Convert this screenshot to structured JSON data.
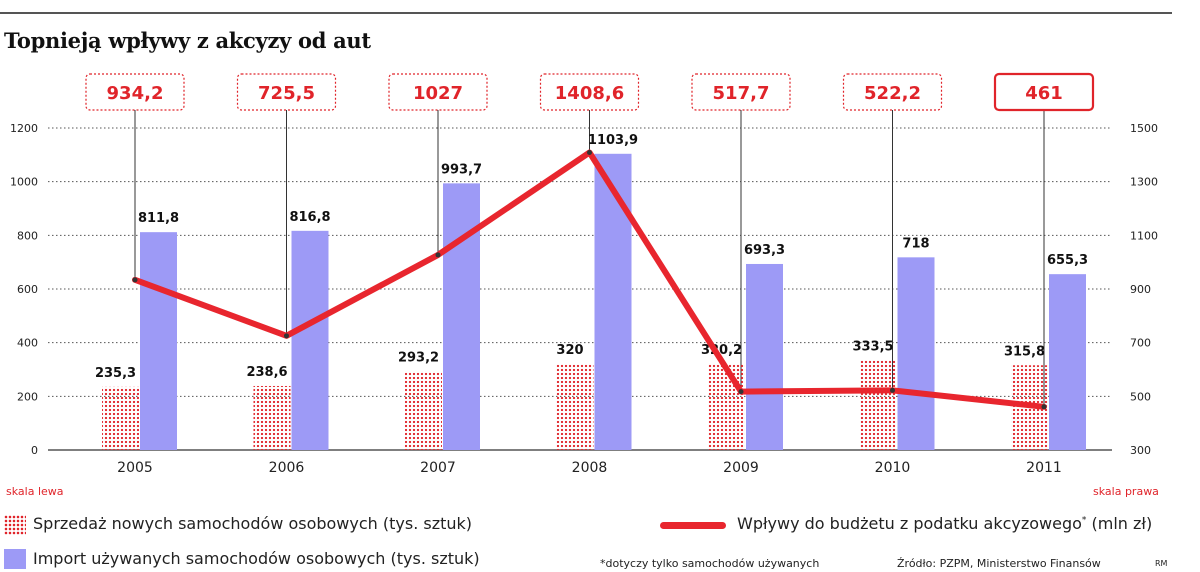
{
  "title": "Topnieją wpływy z akcyzy od aut",
  "chart_data": {
    "type": "bar",
    "categories": [
      "2005",
      "2006",
      "2007",
      "2008",
      "2009",
      "2010",
      "2011"
    ],
    "series": [
      {
        "name": "Sprzedaż nowych samochodów osobowych (tys. sztuk)",
        "type": "bar",
        "axis": "left",
        "values": [
          235.3,
          238.6,
          293.2,
          320,
          320.2,
          333.5,
          315.8
        ],
        "labels": [
          "235,3",
          "238,6",
          "293,2",
          "320",
          "320,2",
          "333,5",
          "315,8"
        ],
        "color": "#e0242a",
        "pattern": "dots"
      },
      {
        "name": "Import używanych samochodów osobowych (tys. sztuk)",
        "type": "bar",
        "axis": "left",
        "values": [
          811.8,
          816.8,
          993.7,
          1103.9,
          693.3,
          718,
          655.3
        ],
        "labels": [
          "811,8",
          "816,8",
          "993,7",
          "1103,9",
          "693,3",
          "718",
          "655,3"
        ],
        "color": "#9d9af6"
      },
      {
        "name": "Wpływy do budżetu z podatku akcyzowego* (mln zł)",
        "type": "line",
        "axis": "right",
        "values": [
          934.2,
          725.5,
          1027,
          1408.6,
          517.7,
          522.2,
          461
        ],
        "labels": [
          "934,2",
          "725,5",
          "1027",
          "1408,6",
          "517,7",
          "522,2",
          "461"
        ],
        "color": "#e8262e"
      }
    ],
    "y_left": {
      "ylim": [
        0,
        1200
      ],
      "ticks": [
        "0",
        "200",
        "400",
        "600",
        "800",
        "1000",
        "1200"
      ]
    },
    "y_right": {
      "ylim": [
        300,
        1500
      ],
      "ticks": [
        "300",
        "500",
        "700",
        "900",
        "1100",
        "1300",
        "1500"
      ]
    },
    "grid": true,
    "legend_position": "bottom"
  },
  "scale_labels": {
    "left": "skala lewa",
    "right": "skala prawa"
  },
  "legend": {
    "new_cars": "Sprzedaż nowych samochodów osobowych (tys. sztuk)",
    "used_import": "Import używanych samochodów osobowych (tys. sztuk)",
    "excise_prefix": "Wpływy do budżetu z podatku akcyzowego",
    "excise_mark": "*",
    "excise_suffix": " (mln zł)"
  },
  "footnote": "*dotyczy tylko samochodów używanych",
  "source": "Źródło: PZPM, Ministerstwo Finansów",
  "author": "RM"
}
